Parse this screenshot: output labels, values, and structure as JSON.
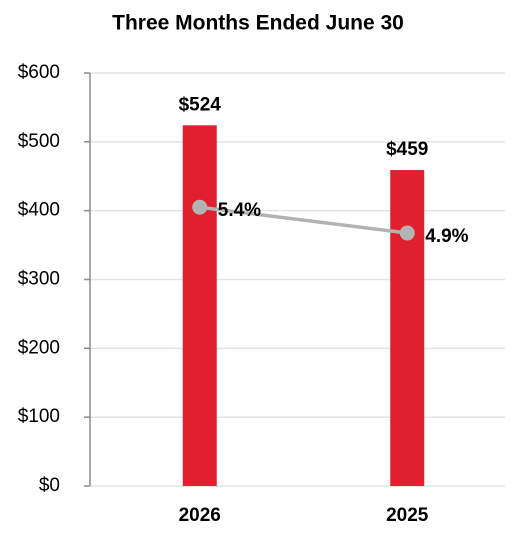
{
  "chart_data": {
    "type": "bar-line",
    "title": "Three Months Ended June 30",
    "categories": [
      "2026",
      "2025"
    ],
    "series": [
      {
        "type": "bar",
        "color": "#e0202e",
        "values": [
          524,
          459
        ],
        "value_labels": [
          "$524",
          "$459"
        ]
      },
      {
        "type": "line",
        "axis": "y2",
        "color": "#b3b3b3",
        "values": [
          5.4,
          4.9
        ],
        "value_labels": [
          "5.4%",
          "4.9%"
        ]
      }
    ],
    "ylim": [
      0,
      600
    ],
    "yticks": [
      {
        "value": 0,
        "label": "$0"
      },
      {
        "value": 100,
        "label": "$100"
      },
      {
        "value": 200,
        "label": "$200"
      },
      {
        "value": 300,
        "label": "$300"
      },
      {
        "value": 400,
        "label": "$400"
      },
      {
        "value": 500,
        "label": "$500"
      },
      {
        "value": 600,
        "label": "$600"
      }
    ],
    "y2lim": [
      0,
      8
    ],
    "grid": true
  }
}
